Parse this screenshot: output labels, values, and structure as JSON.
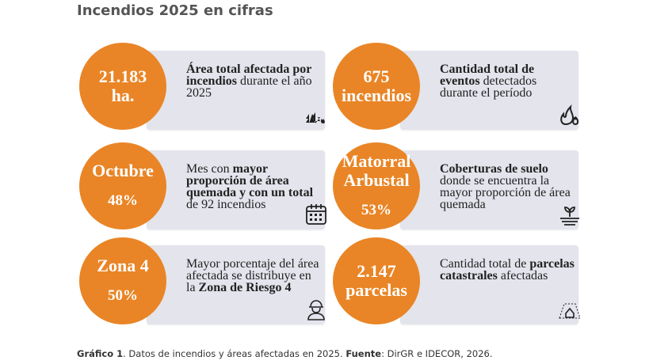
{
  "title": "Incendios 2025 en cifras",
  "colors": {
    "accent": "#e98526",
    "card": "#e3e4ec"
  },
  "cards": [
    {
      "value": [
        "21.183",
        "ha."
      ],
      "segments": [
        {
          "t": "Área total afectada por incendios",
          "b": true
        },
        {
          "t": " durante el año 2025",
          "b": false
        }
      ],
      "icon": "forest-fire-icon"
    },
    {
      "value": [
        "675",
        "incendios"
      ],
      "segments": [
        {
          "t": "Cantidad total de eventos",
          "b": true
        },
        {
          "t": " detectados durante el período",
          "b": false
        }
      ],
      "icon": "fire-icon"
    },
    {
      "value": [
        "Octubre"
      ],
      "pct": "48%",
      "segments": [
        {
          "t": "Mes con ",
          "b": false
        },
        {
          "t": "mayor proporción de área quemada  y  con un total",
          "b": true
        },
        {
          "t": " de 92  incendios",
          "b": false
        }
      ],
      "icon": "calendar-icon"
    },
    {
      "value": [
        "Matorral",
        "Arbustal"
      ],
      "pct": "53%",
      "segments": [
        {
          "t": "Coberturas de suelo",
          "b": true
        },
        {
          "t": " donde se encuentra la mayor proporción de área quemada",
          "b": false
        }
      ],
      "icon": "plant-soil-icon"
    },
    {
      "value": [
        "Zona 4"
      ],
      "pct": "50%",
      "segments": [
        {
          "t": "Mayor porcentaje del área afectada se distribuye en la ",
          "b": false
        },
        {
          "t": "Zona de Riesgo 4",
          "b": true
        }
      ],
      "icon": "firefighter-icon"
    },
    {
      "value": [
        "2.147",
        "parcelas"
      ],
      "segments": [
        {
          "t": "Cantidad total de ",
          "b": false
        },
        {
          "t": "parcelas catastrales",
          "b": true
        },
        {
          "t": " afectadas",
          "b": false
        }
      ],
      "icon": "parcel-house-icon"
    }
  ],
  "caption": [
    {
      "t": "Gráfico 1",
      "b": true
    },
    {
      "t": ". Datos de incendios y áreas afectadas en 2025. ",
      "b": false
    },
    {
      "t": "Fuente",
      "b": true
    },
    {
      "t": ": DirGR e IDECOR, 2026.",
      "b": false
    }
  ]
}
